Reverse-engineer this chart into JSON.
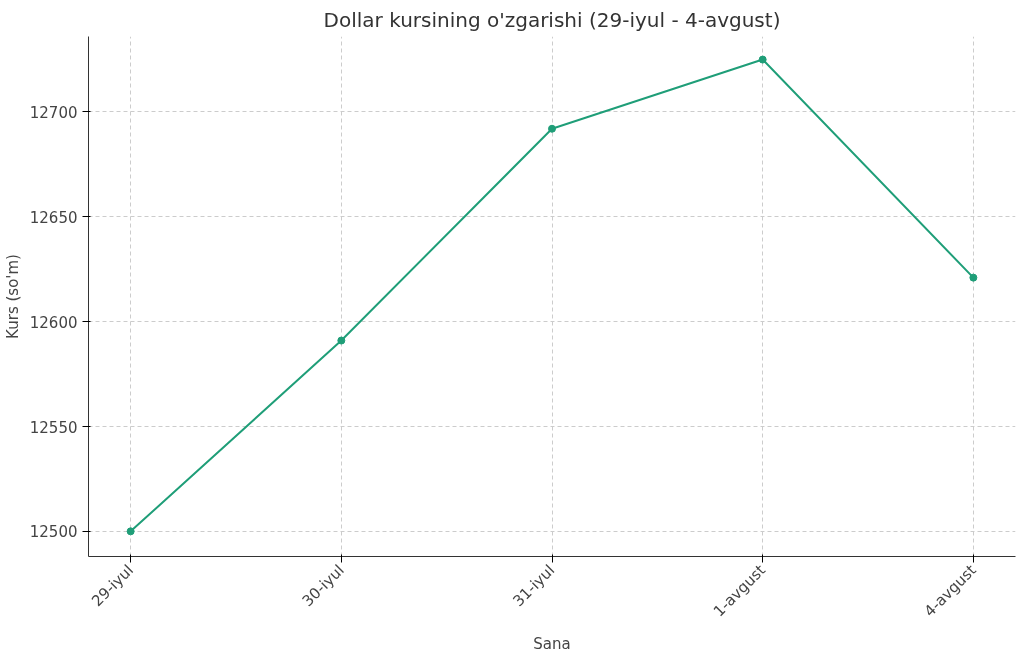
{
  "chart_data": {
    "type": "line",
    "title": "Dollar kursining o'zgarishi (29-iyul - 4-avgust)",
    "xlabel": "Sana",
    "ylabel": "Kurs (so'm)",
    "categories": [
      "29-iyul",
      "30-iyul",
      "31-iyul",
      "1-avgust",
      "4-avgust"
    ],
    "series": [
      {
        "color": "#1f9e78",
        "values": [
          12500,
          12591,
          12692,
          12725,
          12621
        ]
      }
    ],
    "ylim": [
      12488,
      12736
    ],
    "yticks": [
      12500,
      12550,
      12600,
      12650,
      12700
    ],
    "grid": true,
    "marker": "circle",
    "line_style": "solid"
  }
}
